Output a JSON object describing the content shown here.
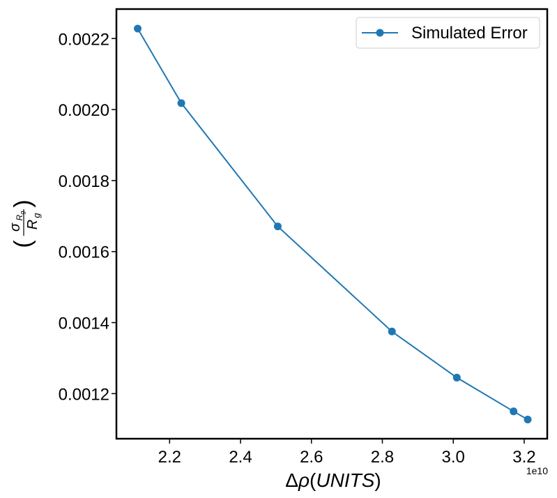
{
  "chart_data": {
    "type": "line",
    "title": "",
    "xlabel": "Δρ(UNITS)",
    "ylabel": "(σ_Rg / R_g)",
    "x_offset_text": "1e10",
    "xlim": [
      2.05,
      3.265
    ],
    "ylim": [
      0.001073,
      0.002283
    ],
    "xticks": [
      2.2,
      2.4,
      2.6,
      2.8,
      3.0,
      3.2
    ],
    "xtick_labels": [
      "2.2",
      "2.4",
      "2.6",
      "2.8",
      "3.0",
      "3.2"
    ],
    "yticks": [
      0.0012,
      0.0014,
      0.0016,
      0.0018,
      0.002,
      0.0022
    ],
    "ytick_labels": [
      "0.0012",
      "0.0014",
      "0.0016",
      "0.0018",
      "0.0020",
      "0.0022"
    ],
    "legend_position": "top-right",
    "grid": false,
    "series": [
      {
        "name": "Simulated Error",
        "color": "#1f77b4",
        "marker": "circle",
        "x": [
          2.11,
          2.233,
          2.505,
          2.827,
          3.01,
          3.17,
          3.21
        ],
        "y": [
          0.002228,
          0.002018,
          0.001671,
          0.001375,
          0.001245,
          0.00115,
          0.001127
        ]
      }
    ]
  }
}
